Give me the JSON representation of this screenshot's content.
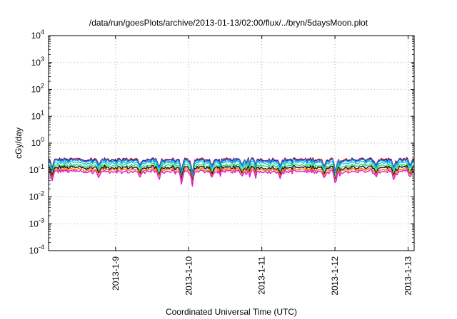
{
  "chart_data": {
    "type": "line",
    "title": "/data/run/goesPlots/archive/2013-01-13/02:00/flux/../bryn/5daysMoon.plot",
    "xlabel": "Coordinated Universal Time (UTC)",
    "ylabel": "cGy/day",
    "y_scale": "log",
    "ylim": [
      0.0001,
      10000
    ],
    "xlim": [
      "2013-01-08T02:00",
      "2013-01-13T02:00"
    ],
    "y_ticks": [
      {
        "value": 0.0001,
        "base": "10",
        "exp": "-4"
      },
      {
        "value": 0.001,
        "base": "10",
        "exp": "-3"
      },
      {
        "value": 0.01,
        "base": "10",
        "exp": "-2"
      },
      {
        "value": 0.1,
        "base": "10",
        "exp": "-1"
      },
      {
        "value": 1,
        "base": "10",
        "exp": "0"
      },
      {
        "value": 10,
        "base": "10",
        "exp": "1"
      },
      {
        "value": 100,
        "base": "10",
        "exp": "2"
      },
      {
        "value": 1000,
        "base": "10",
        "exp": "3"
      },
      {
        "value": 10000,
        "base": "10",
        "exp": "4"
      }
    ],
    "x_ticks": [
      {
        "value": "2013-01-09T00:00",
        "label": "2013-1-9"
      },
      {
        "value": "2013-01-10T00:00",
        "label": "2013-1-10"
      },
      {
        "value": "2013-01-11T00:00",
        "label": "2013-1-11"
      },
      {
        "value": "2013-01-12T00:00",
        "label": "2013-1-12"
      },
      {
        "value": "2013-01-13T00:00",
        "label": "2013-1-13"
      }
    ],
    "grid": true,
    "legend": "none",
    "series": [
      {
        "color": "#e8191a",
        "base": 0.25,
        "sigma": 0.1
      },
      {
        "color": "#1f2b9c",
        "base": 0.24,
        "sigma": 0.11
      },
      {
        "color": "#1fc8d8",
        "base": 0.19,
        "sigma": 0.12
      },
      {
        "color": "#2bd66f",
        "base": 0.15,
        "sigma": 0.12
      },
      {
        "color": "#111111",
        "base": 0.125,
        "sigma": 0.11
      },
      {
        "color": "#ff7a00",
        "base": 0.105,
        "sigma": 0.11
      },
      {
        "color": "#e515d8",
        "base": 0.088,
        "sigma": 0.13
      },
      {
        "color": "#1f8fe5",
        "base": 0.22,
        "sigma": 0.1
      }
    ],
    "dips": [
      {
        "x": "2013-01-08T03:10",
        "factor": 0.45
      },
      {
        "x": "2013-01-08T18:30",
        "factor": 0.55
      },
      {
        "x": "2013-01-09T08:00",
        "factor": 0.6
      },
      {
        "x": "2013-01-09T14:15",
        "factor": 0.45
      },
      {
        "x": "2013-01-09T21:40",
        "factor": 0.3
      },
      {
        "x": "2013-01-10T01:10",
        "factor": 0.25
      },
      {
        "x": "2013-01-10T07:40",
        "factor": 0.55
      },
      {
        "x": "2013-01-10T17:30",
        "factor": 0.6
      },
      {
        "x": "2013-01-11T06:00",
        "factor": 0.55
      },
      {
        "x": "2013-01-11T20:30",
        "factor": 0.5
      },
      {
        "x": "2013-01-12T00:10",
        "factor": 0.25
      },
      {
        "x": "2013-01-12T13:30",
        "factor": 0.55
      },
      {
        "x": "2013-01-12T19:20",
        "factor": 0.45
      },
      {
        "x": "2013-01-13T00:40",
        "factor": 0.55
      }
    ]
  }
}
